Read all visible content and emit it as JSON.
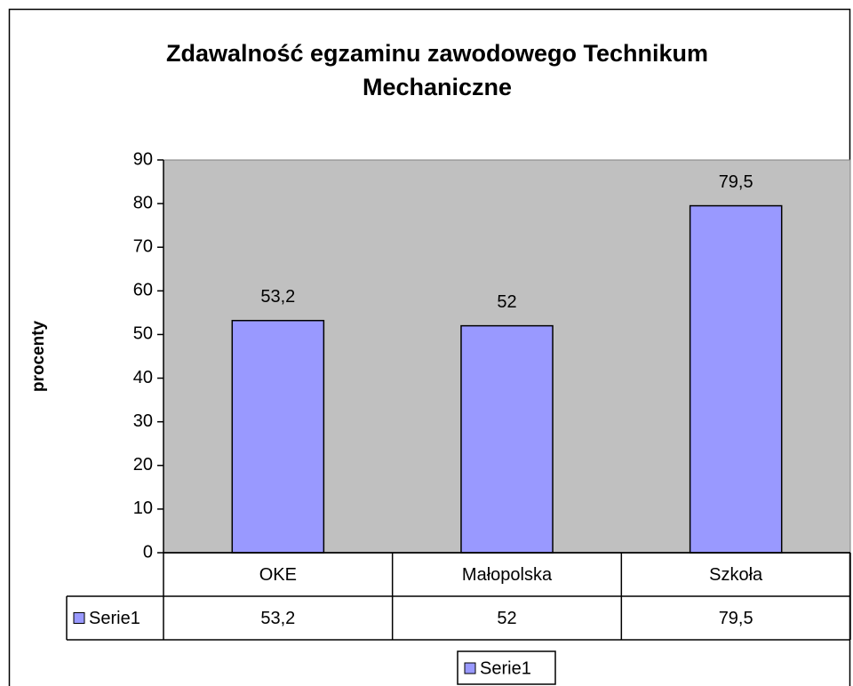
{
  "chart_data": {
    "type": "bar",
    "title": [
      "Zdawalność egzaminu zawodowego Technikum",
      "Mechaniczne"
    ],
    "y_label": "procenty",
    "categories": [
      "OKE",
      "Małopolska",
      "Szkoła"
    ],
    "series": [
      {
        "name": "Serie1",
        "color": "#9999ff",
        "values": [
          53.2,
          52,
          79.5
        ],
        "value_labels": [
          "53,2",
          "52",
          "79,5"
        ]
      }
    ],
    "ylim": [
      0,
      90
    ],
    "yticks": [
      0,
      10,
      20,
      30,
      40,
      50,
      60,
      70,
      80,
      90
    ],
    "plot_background": "#c0c0c0",
    "data_table": true,
    "legend": "bottom"
  }
}
